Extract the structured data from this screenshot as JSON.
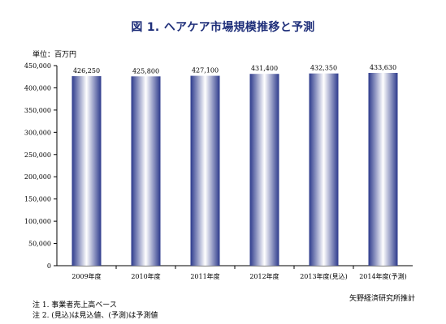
{
  "header": {
    "title": "図 1.  ヘアケア市場規模推移と予測",
    "unit": "単位：百万円"
  },
  "footer": {
    "note1": "注 1.  事業者売上高ベース",
    "note2": "注 2.  (見込)は見込値、(予測)は予測値",
    "source": "矢野経済研究所推計"
  },
  "colors": {
    "bar_edge": "#2d3a8c",
    "bar_light": "#ffffff",
    "title": "#1f2f7a"
  },
  "chart_data": {
    "type": "bar",
    "categories": [
      "2009年度",
      "2010年度",
      "2011年度",
      "2012年度",
      "2013年度(見込)",
      "2014年度(予測)"
    ],
    "values": [
      426250,
      425800,
      427100,
      431400,
      432350,
      433630
    ],
    "value_labels": [
      "426,250",
      "425,800",
      "427,100",
      "431,400",
      "432,350",
      "433,630"
    ],
    "yticks": [
      "0",
      "50,000",
      "100,000",
      "150,000",
      "200,000",
      "250,000",
      "300,000",
      "350,000",
      "400,000",
      "450,000"
    ],
    "ylim": [
      0,
      450000
    ],
    "title": "図 1.  ヘアケア市場規模推移と予測",
    "ylabel": "単位：百万円",
    "grid": false
  }
}
